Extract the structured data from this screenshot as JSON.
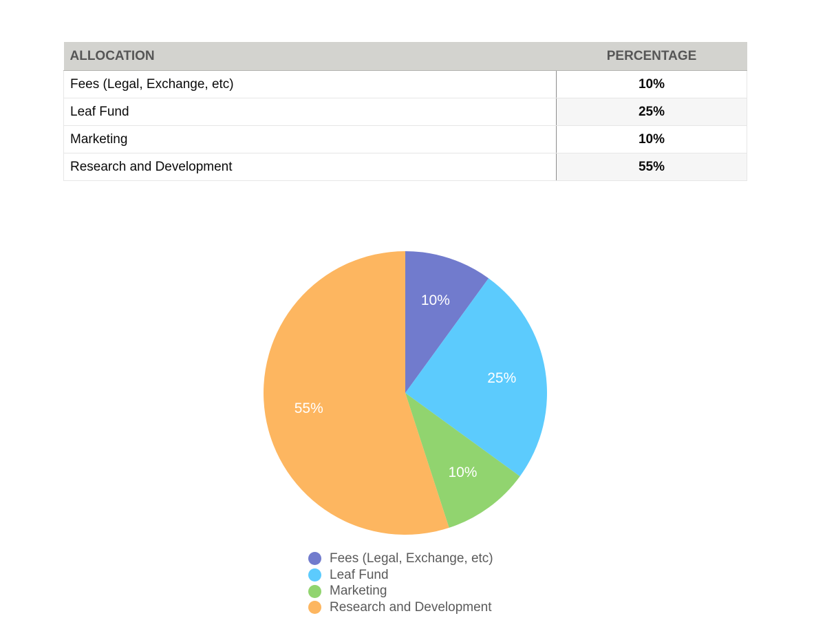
{
  "table": {
    "headers": [
      "ALLOCATION",
      "PERCENTAGE"
    ],
    "rows": [
      {
        "name": "Fees (Legal, Exchange, etc)",
        "pct": "10%"
      },
      {
        "name": "Leaf Fund",
        "pct": "25%"
      },
      {
        "name": "Marketing",
        "pct": "10%"
      },
      {
        "name": "Research and Development",
        "pct": "55%"
      }
    ]
  },
  "chart_data": {
    "type": "pie",
    "categories": [
      "Fees (Legal, Exchange, etc)",
      "Leaf Fund",
      "Marketing",
      "Research and Development"
    ],
    "values": [
      10,
      25,
      10,
      55
    ],
    "value_labels": [
      "10%",
      "25%",
      "10%",
      "55%"
    ],
    "colors": [
      "#717bcd",
      "#5ccbfd",
      "#91d46f",
      "#fdb660"
    ],
    "label_color": "#ffffff",
    "legend_position": "bottom"
  }
}
